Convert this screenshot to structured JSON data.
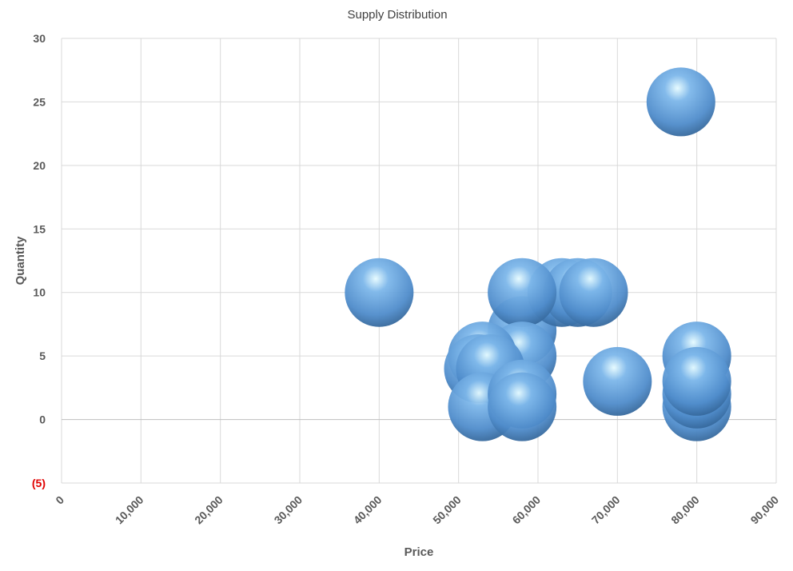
{
  "chart_data": {
    "type": "bubble",
    "title": "Supply Distribution",
    "xlabel": "Price",
    "ylabel": "Quantity",
    "xlim": [
      0,
      90000
    ],
    "ylim": [
      -5,
      30
    ],
    "x_ticks": [
      0,
      10000,
      20000,
      30000,
      40000,
      50000,
      60000,
      70000,
      80000,
      90000
    ],
    "x_tick_labels": [
      "0",
      "10,000",
      "20,000",
      "30,000",
      "40,000",
      "50,000",
      "60,000",
      "70,000",
      "80,000",
      "90,000"
    ],
    "y_ticks": [
      -5,
      0,
      5,
      10,
      15,
      20,
      25,
      30
    ],
    "y_tick_labels": [
      "(5)",
      "0",
      "5",
      "10",
      "15",
      "20",
      "25",
      "30"
    ],
    "negative_label_color": "#e00000",
    "grid": true,
    "bubble_color": "#5b9bd5",
    "points": [
      {
        "x": 40000,
        "y": 10,
        "size": 1
      },
      {
        "x": 78000,
        "y": 25,
        "size": 1
      },
      {
        "x": 80000,
        "y": 5,
        "size": 1
      },
      {
        "x": 70000,
        "y": 3,
        "size": 1
      },
      {
        "x": 58000,
        "y": 7,
        "size": 1
      },
      {
        "x": 63000,
        "y": 10,
        "size": 1
      },
      {
        "x": 65000,
        "y": 10,
        "size": 1
      },
      {
        "x": 67000,
        "y": 10,
        "size": 1
      },
      {
        "x": 58000,
        "y": 10,
        "size": 1
      },
      {
        "x": 58000,
        "y": 5,
        "size": 1
      },
      {
        "x": 53000,
        "y": 5,
        "size": 1
      },
      {
        "x": 52500,
        "y": 4,
        "size": 1
      },
      {
        "x": 54000,
        "y": 4,
        "size": 1
      },
      {
        "x": 53000,
        "y": 1,
        "size": 1
      },
      {
        "x": 58000,
        "y": 2,
        "size": 1
      },
      {
        "x": 58000,
        "y": 1,
        "size": 1
      },
      {
        "x": 80000,
        "y": 1,
        "size": 1
      },
      {
        "x": 80000,
        "y": 2,
        "size": 1
      },
      {
        "x": 80000,
        "y": 3,
        "size": 1
      }
    ]
  }
}
